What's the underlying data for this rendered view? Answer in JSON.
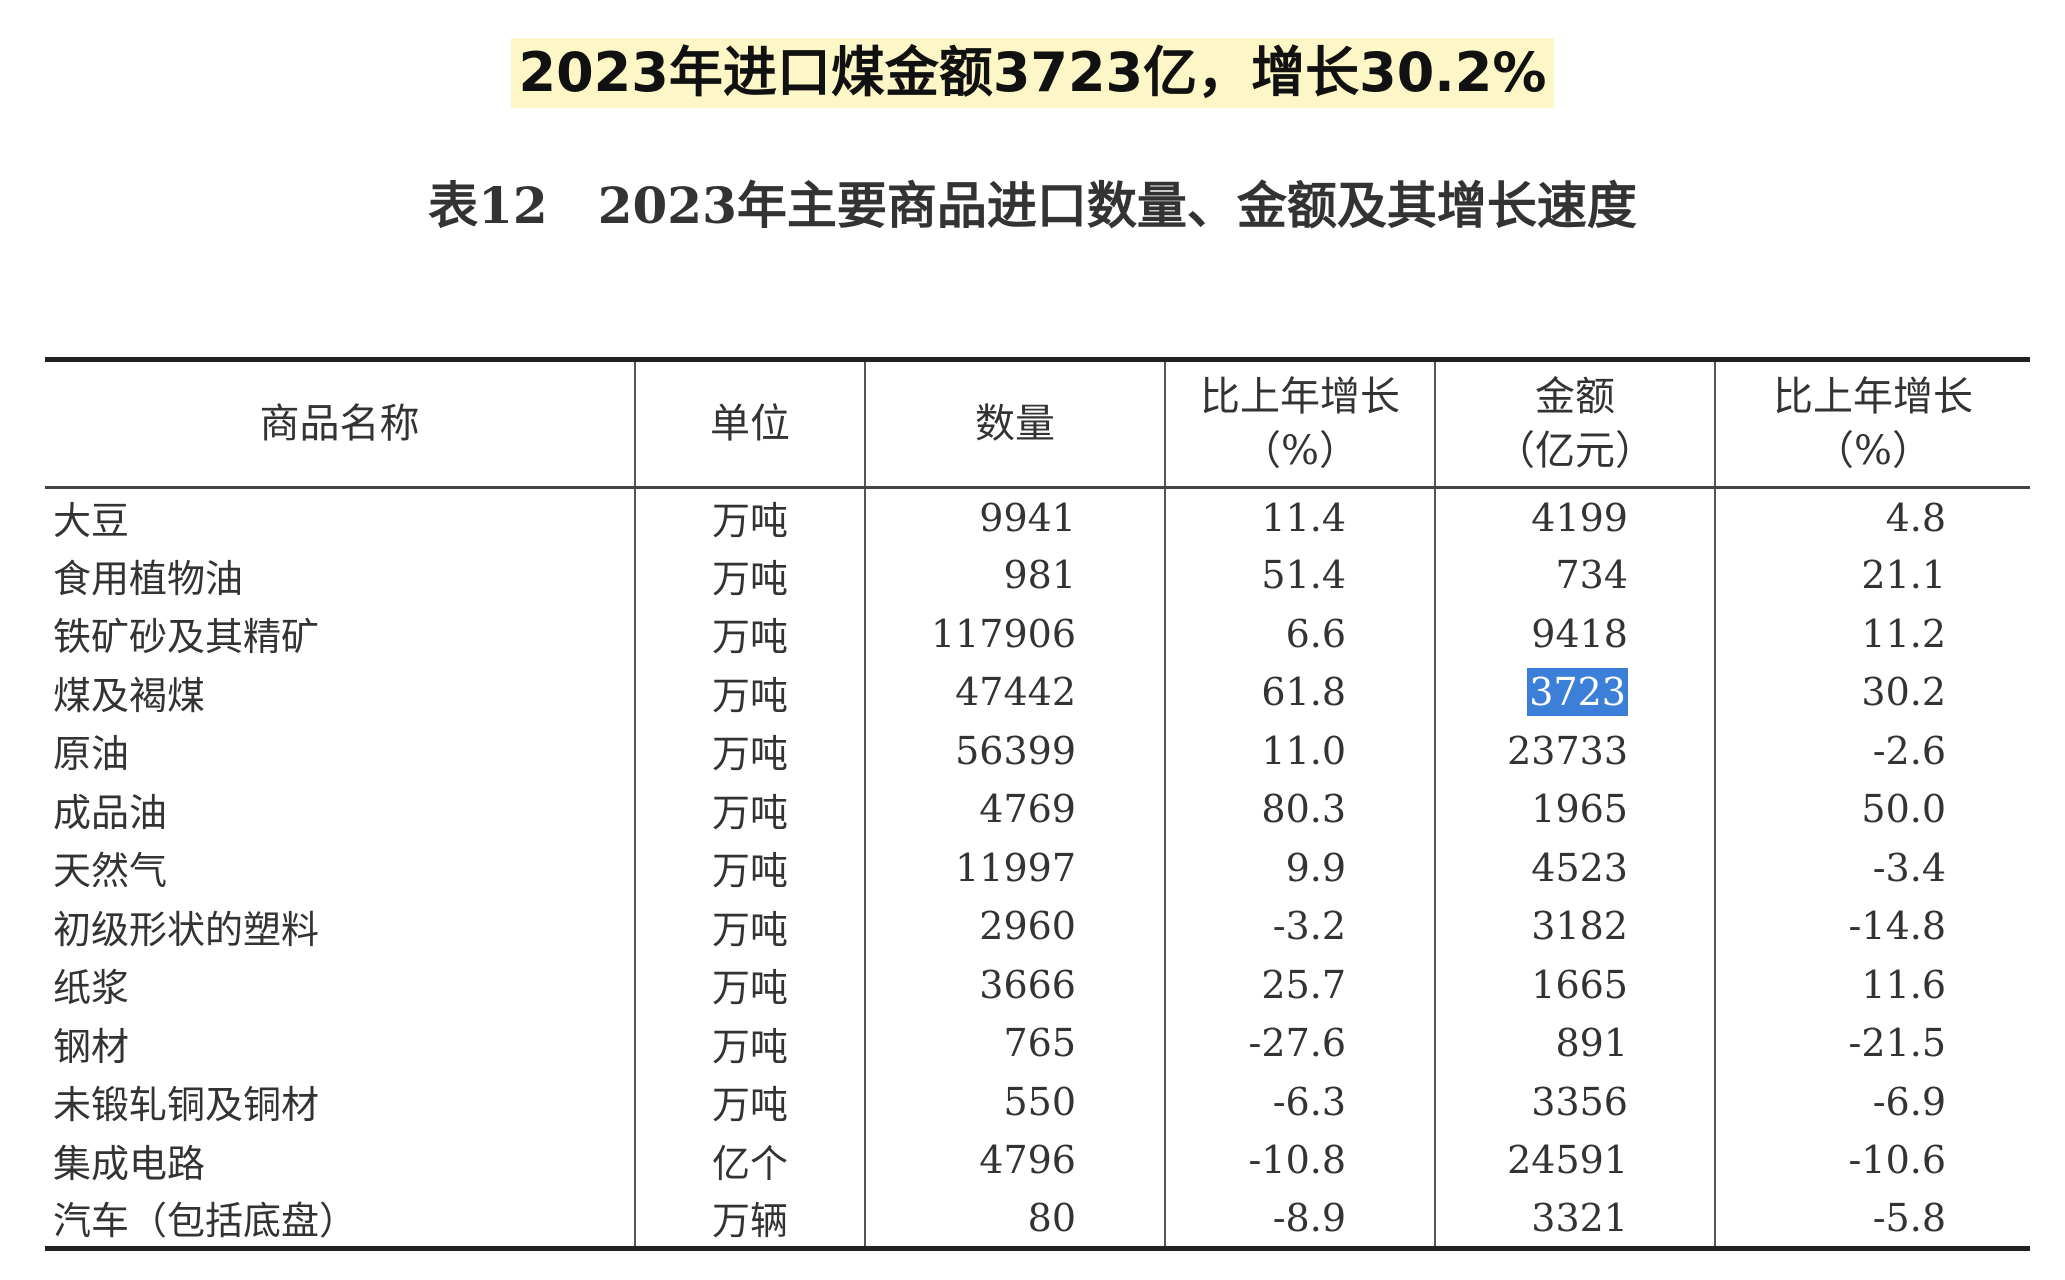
{
  "headline": "2023年进口煤金额3723亿，增长30.2%",
  "table_title": "表12　2023年主要商品进口数量、金额及其增长速度",
  "headers": {
    "name": "商品名称",
    "unit": "单位",
    "qty": "数量",
    "qty_growth": "比上年增长",
    "qty_growth_unit": "（%）",
    "amount": "金额",
    "amount_unit": "（亿元）",
    "amount_growth": "比上年增长",
    "amount_growth_unit": "（%）"
  },
  "rows": [
    {
      "name": "大豆",
      "unit": "万吨",
      "qty": "9941",
      "qty_growth": "11.4",
      "amount": "4199",
      "amount_growth": "4.8"
    },
    {
      "name": "食用植物油",
      "unit": "万吨",
      "qty": "981",
      "qty_growth": "51.4",
      "amount": "734",
      "amount_growth": "21.1"
    },
    {
      "name": "铁矿砂及其精矿",
      "unit": "万吨",
      "qty": "117906",
      "qty_growth": "6.6",
      "amount": "9418",
      "amount_growth": "11.2"
    },
    {
      "name": "煤及褐煤",
      "unit": "万吨",
      "qty": "47442",
      "qty_growth": "61.8",
      "amount": "3723",
      "amount_growth": "30.2"
    },
    {
      "name": "原油",
      "unit": "万吨",
      "qty": "56399",
      "qty_growth": "11.0",
      "amount": "23733",
      "amount_growth": "-2.6"
    },
    {
      "name": "成品油",
      "unit": "万吨",
      "qty": "4769",
      "qty_growth": "80.3",
      "amount": "1965",
      "amount_growth": "50.0"
    },
    {
      "name": "天然气",
      "unit": "万吨",
      "qty": "11997",
      "qty_growth": "9.9",
      "amount": "4523",
      "amount_growth": "-3.4"
    },
    {
      "name": "初级形状的塑料",
      "unit": "万吨",
      "qty": "2960",
      "qty_growth": "-3.2",
      "amount": "3182",
      "amount_growth": "-14.8"
    },
    {
      "name": "纸浆",
      "unit": "万吨",
      "qty": "3666",
      "qty_growth": "25.7",
      "amount": "1665",
      "amount_growth": "11.6"
    },
    {
      "name": "钢材",
      "unit": "万吨",
      "qty": "765",
      "qty_growth": "-27.6",
      "amount": "891",
      "amount_growth": "-21.5"
    },
    {
      "name": "未锻轧铜及铜材",
      "unit": "万吨",
      "qty": "550",
      "qty_growth": "-6.3",
      "amount": "3356",
      "amount_growth": "-6.9"
    },
    {
      "name": "集成电路",
      "unit": "亿个",
      "qty": "4796",
      "qty_growth": "-10.8",
      "amount": "24591",
      "amount_growth": "-10.6"
    },
    {
      "name": "汽车（包括底盘）",
      "unit": "万辆",
      "qty": "80",
      "qty_growth": "-8.9",
      "amount": "3321",
      "amount_growth": "-5.8"
    }
  ],
  "highlight": {
    "row": 3,
    "column": "amount",
    "color": "#3b7fd8"
  },
  "colors": {
    "headline_bg": "#fdf7c8",
    "text": "#222222"
  }
}
